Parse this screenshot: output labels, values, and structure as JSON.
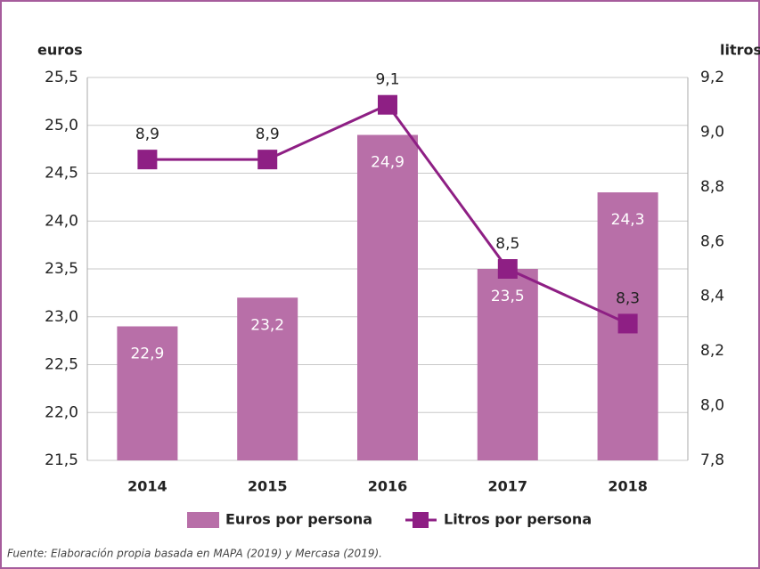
{
  "chart_data": {
    "type": "bar",
    "ylabel": "euros",
    "y2label": "litros",
    "categories": [
      "2014",
      "2015",
      "2016",
      "2017",
      "2018"
    ],
    "series": [
      {
        "name": "Euros por persona",
        "type": "bar",
        "color": "#b86fa8",
        "values": [
          22.9,
          23.2,
          24.9,
          23.5,
          24.3
        ],
        "value_labels": [
          "22,9",
          "23,2",
          "24,9",
          "23,5",
          "24,3"
        ]
      },
      {
        "name": "Litros por persona",
        "type": "line",
        "axis": "y2",
        "color": "#8e1f84",
        "values": [
          8.9,
          8.9,
          9.1,
          8.5,
          8.3
        ],
        "value_labels": [
          "8,9",
          "8,9",
          "9,1",
          "8,5",
          "8,3"
        ]
      }
    ],
    "ylim": [
      21.5,
      25.5
    ],
    "yticks": [
      {
        "value": 21.5,
        "label": "21,5"
      },
      {
        "value": 22,
        "label": "22,0"
      },
      {
        "value": 22.5,
        "label": "22,5"
      },
      {
        "value": 23,
        "label": "23,0"
      },
      {
        "value": 23.5,
        "label": "23,5"
      },
      {
        "value": 24,
        "label": "24,0"
      },
      {
        "value": 24.5,
        "label": "24,5"
      },
      {
        "value": 25,
        "label": "25,0"
      },
      {
        "value": 25.5,
        "label": "25,5"
      }
    ],
    "y2lim": [
      7.8,
      9.2
    ],
    "y2ticks": [
      {
        "value": 7.8,
        "label": "7,8"
      },
      {
        "value": 8,
        "label": "8,0"
      },
      {
        "value": 8.2,
        "label": "8,2"
      },
      {
        "value": 8.4,
        "label": "8,4"
      },
      {
        "value": 8.6,
        "label": "8,6"
      },
      {
        "value": 8.8,
        "label": "8,8"
      },
      {
        "value": 9,
        "label": "9,0"
      },
      {
        "value": 9.2,
        "label": "9,2"
      }
    ],
    "grid": true,
    "legend": "bottom",
    "source": "Fuente: Elaboración propia basada en MAPA (2019) y Mercasa (2019)."
  }
}
